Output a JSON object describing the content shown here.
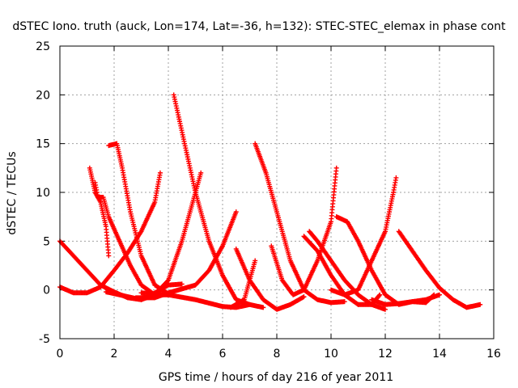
{
  "chart_data": {
    "type": "scatter",
    "title": "dSTEC Iono. truth (auck, Lon=174, Lat=-36, h=132): STEC-STEC_elemax in phase cont",
    "xlabel": "GPS time / hours of day 216 of year 2011",
    "ylabel": "dSTEC  / TECUs",
    "xlim": [
      0,
      16
    ],
    "ylim": [
      -5,
      25
    ],
    "xticks": [
      0,
      2,
      4,
      6,
      8,
      10,
      12,
      14,
      16
    ],
    "yticks": [
      -5,
      0,
      5,
      10,
      15,
      20,
      25
    ],
    "xtick_labels": [
      "0",
      "2",
      "4",
      "6",
      "8",
      "10",
      "12",
      "14",
      "16"
    ],
    "ytick_labels": [
      "-5",
      "0",
      "5",
      "10",
      "15",
      "20",
      "25"
    ],
    "grid": true,
    "legend": false,
    "marker": "+",
    "series_color": "#ff0000",
    "series": [
      {
        "points": [
          [
            0,
            5
          ],
          [
            0.5,
            3.5
          ],
          [
            1,
            2
          ],
          [
            1.5,
            0.5
          ],
          [
            2,
            -0.2
          ],
          [
            2.5,
            -0.8
          ],
          [
            3,
            -1
          ],
          [
            3.5,
            -0.3
          ],
          [
            4,
            0.5
          ],
          [
            4.5,
            0.6
          ]
        ]
      },
      {
        "points": [
          [
            0,
            0.3
          ],
          [
            0.5,
            -0.3
          ],
          [
            1,
            -0.3
          ],
          [
            1.5,
            0.3
          ],
          [
            2,
            2
          ],
          [
            2.5,
            3.8
          ],
          [
            3,
            6
          ],
          [
            3.5,
            9
          ],
          [
            3.7,
            12
          ]
        ]
      },
      {
        "points": [
          [
            1.1,
            12.5
          ],
          [
            1.3,
            10
          ],
          [
            1.5,
            9
          ],
          [
            1.7,
            6.5
          ],
          [
            1.8,
            3.5
          ]
        ]
      },
      {
        "points": [
          [
            1.3,
            11
          ],
          [
            1.4,
            9.5
          ],
          [
            1.6,
            9.5
          ],
          [
            1.8,
            7.5
          ],
          [
            2.2,
            5
          ],
          [
            2.6,
            2.5
          ],
          [
            3,
            0.5
          ],
          [
            3.5,
            -0.5
          ],
          [
            4,
            -0.5
          ]
        ]
      },
      {
        "points": [
          [
            1.8,
            14.8
          ],
          [
            2.1,
            15
          ],
          [
            2.3,
            12.5
          ],
          [
            2.6,
            8
          ],
          [
            3,
            3.5
          ],
          [
            3.5,
            0.5
          ],
          [
            4,
            -0.4
          ]
        ]
      },
      {
        "points": [
          [
            1.7,
            -0.2
          ],
          [
            2.2,
            -0.5
          ],
          [
            3,
            -1
          ],
          [
            3.5,
            -0.5
          ],
          [
            4,
            1
          ],
          [
            4.5,
            5
          ],
          [
            5,
            10
          ],
          [
            5.2,
            12
          ]
        ]
      },
      {
        "points": [
          [
            4.2,
            20
          ],
          [
            4.6,
            15
          ],
          [
            5,
            10
          ],
          [
            5.5,
            5
          ],
          [
            6,
            1.5
          ],
          [
            6.5,
            -1
          ],
          [
            7,
            -1.5
          ],
          [
            7.5,
            -1.8
          ]
        ]
      },
      {
        "points": [
          [
            2.8,
            -0.8
          ],
          [
            3.5,
            -0.8
          ],
          [
            4,
            -0.3
          ],
          [
            5,
            0.5
          ],
          [
            5.5,
            2
          ],
          [
            6,
            4.5
          ],
          [
            6.5,
            8
          ]
        ]
      },
      {
        "points": [
          [
            3,
            -0.3
          ],
          [
            4,
            -0.5
          ],
          [
            5,
            -1
          ],
          [
            6,
            -1.7
          ],
          [
            6.5,
            -1.8
          ],
          [
            7,
            -1.5
          ]
        ]
      },
      {
        "points": [
          [
            6.5,
            4.2
          ],
          [
            7,
            1
          ],
          [
            7.5,
            -1
          ],
          [
            8,
            -2
          ],
          [
            8.5,
            -1.5
          ],
          [
            9,
            -0.7
          ]
        ]
      },
      {
        "points": [
          [
            6.3,
            -1.8
          ],
          [
            6.8,
            -1
          ],
          [
            7.2,
            3
          ]
        ]
      },
      {
        "points": [
          [
            7.2,
            15
          ],
          [
            7.6,
            12
          ],
          [
            8,
            8
          ],
          [
            8.5,
            3
          ],
          [
            9,
            0
          ],
          [
            9.5,
            -1
          ],
          [
            10,
            -1.3
          ],
          [
            10.5,
            -1.2
          ]
        ]
      },
      {
        "points": [
          [
            7.8,
            4.5
          ],
          [
            8.2,
            1
          ],
          [
            8.6,
            -0.5
          ],
          [
            9,
            0
          ],
          [
            9.5,
            3
          ],
          [
            10,
            7
          ],
          [
            10.2,
            12.5
          ]
        ]
      },
      {
        "points": [
          [
            9.2,
            6
          ],
          [
            9.5,
            5
          ],
          [
            10,
            3
          ],
          [
            10.5,
            1
          ],
          [
            11,
            -0.5
          ],
          [
            11.5,
            -1.5
          ],
          [
            12,
            -2
          ]
        ]
      },
      {
        "points": [
          [
            9,
            5.5
          ],
          [
            9.5,
            4
          ],
          [
            10,
            1.5
          ],
          [
            10.5,
            -0.5
          ],
          [
            11,
            -1.5
          ]
        ]
      },
      {
        "points": [
          [
            10.2,
            7.5
          ],
          [
            10.6,
            7
          ],
          [
            11,
            5
          ],
          [
            11.5,
            2
          ],
          [
            12,
            -0.5
          ],
          [
            12.5,
            -1.5
          ],
          [
            13,
            -1.2
          ],
          [
            13.5,
            -1
          ],
          [
            14,
            -0.5
          ]
        ]
      },
      {
        "points": [
          [
            10,
            0
          ],
          [
            10.5,
            -0.5
          ],
          [
            11,
            0
          ],
          [
            11.5,
            3
          ],
          [
            12,
            6
          ],
          [
            12.3,
            10
          ],
          [
            12.4,
            11.5
          ]
        ]
      },
      {
        "points": [
          [
            12.5,
            6
          ],
          [
            13,
            4
          ],
          [
            13.5,
            2
          ],
          [
            14,
            0.2
          ],
          [
            14.5,
            -1
          ],
          [
            15,
            -1.8
          ],
          [
            15.5,
            -1.5
          ]
        ]
      },
      {
        "points": [
          [
            11.5,
            -1
          ],
          [
            12,
            -1.5
          ],
          [
            12.5,
            -1.4
          ],
          [
            13,
            -1.2
          ],
          [
            13.5,
            -1.3
          ],
          [
            13.8,
            -0.5
          ]
        ]
      },
      {
        "points": [
          [
            11,
            -1.5
          ],
          [
            11.5,
            -1.5
          ],
          [
            11.8,
            -0.5
          ]
        ]
      }
    ]
  }
}
